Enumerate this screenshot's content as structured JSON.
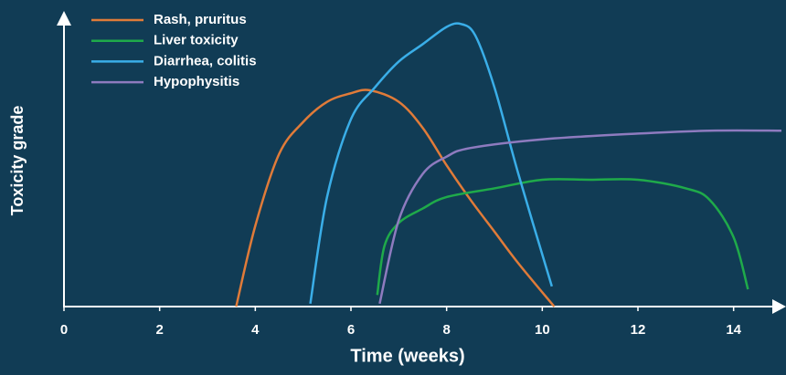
{
  "chart_data": {
    "type": "line",
    "xlabel": "Time (weeks)",
    "ylabel": "Toxicity grade",
    "xlim": [
      0,
      15
    ],
    "ylim": [
      0,
      1
    ],
    "xticks": [
      0,
      2,
      4,
      6,
      8,
      10,
      12,
      14
    ],
    "legend": "top-left",
    "series": [
      {
        "name": "Rash, pruritus",
        "color": "#e07b39",
        "x": [
          3.6,
          4,
          4.5,
          5,
          5.5,
          6,
          6.4,
          7,
          7.5,
          8,
          8.5,
          9,
          9.5,
          10.25
        ],
        "values": [
          0,
          0.28,
          0.53,
          0.64,
          0.71,
          0.74,
          0.75,
          0.71,
          0.62,
          0.49,
          0.37,
          0.26,
          0.15,
          0
        ]
      },
      {
        "name": "Liver toxicity",
        "color": "#1faa4a",
        "x": [
          6.55,
          6.7,
          7,
          7.5,
          8,
          9,
          10,
          11,
          12,
          13,
          13.5,
          14,
          14.3
        ],
        "values": [
          0.04,
          0.21,
          0.29,
          0.34,
          0.38,
          0.41,
          0.44,
          0.44,
          0.44,
          0.41,
          0.37,
          0.24,
          0.06
        ]
      },
      {
        "name": "Diarrhea, colitis",
        "color": "#3aaee8",
        "x": [
          5.15,
          5.5,
          6,
          6.5,
          7,
          7.5,
          8,
          8.3,
          8.6,
          9,
          9.5,
          10.2
        ],
        "values": [
          0.01,
          0.38,
          0.65,
          0.76,
          0.85,
          0.91,
          0.97,
          0.98,
          0.94,
          0.76,
          0.46,
          0.07
        ]
      },
      {
        "name": "Hypophysitis",
        "color": "#8e7bbf",
        "x": [
          6.6,
          7,
          7.5,
          8,
          8.5,
          10,
          12,
          13.5,
          15
        ],
        "values": [
          0.01,
          0.3,
          0.46,
          0.52,
          0.55,
          0.58,
          0.6,
          0.61,
          0.61
        ]
      }
    ]
  }
}
